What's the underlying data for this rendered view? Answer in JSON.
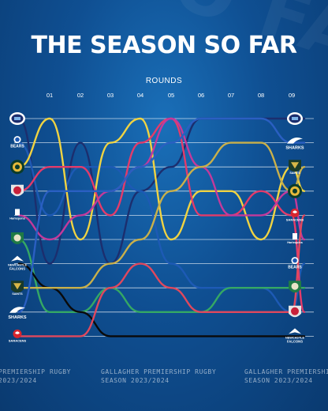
{
  "header": {
    "title": "THE SEASON SO FAR",
    "background_word": "SO FAR"
  },
  "chart_data": {
    "type": "line",
    "title": "THE SEASON SO FAR",
    "xlabel": "ROUNDS",
    "ylabel": "",
    "x_labels": [
      "01",
      "02",
      "03",
      "04",
      "05",
      "06",
      "07",
      "08",
      "09"
    ],
    "y_direction": "table position (1 = top)",
    "ylim": [
      10,
      1
    ],
    "grid": true,
    "start_order": [
      "Bath",
      "Bristol Bears",
      "Exeter Chiefs",
      "Gloucester",
      "Harlequins",
      "Leicester Tigers",
      "Newcastle Falcons",
      "Northampton Saints",
      "Sale Sharks",
      "Saracens"
    ],
    "end_order": [
      "Bath",
      "Sale Sharks",
      "Northampton Saints",
      "Exeter Chiefs",
      "Saracens",
      "Harlequins",
      "Bristol Bears",
      "Leicester Tigers",
      "Gloucester",
      "Newcastle Falcons"
    ],
    "series": [
      {
        "name": "Bath",
        "color": "#1c2e6e",
        "values": [
          1,
          7,
          2,
          7,
          4,
          3,
          1,
          1,
          1,
          1,
          1
        ]
      },
      {
        "name": "Bristol Bears",
        "color": "#1d5ab5",
        "values": [
          2,
          5,
          3,
          3,
          4,
          7,
          8,
          8,
          8,
          9,
          7
        ]
      },
      {
        "name": "Exeter Chiefs",
        "color": "#f0d342",
        "values": [
          3,
          1,
          6,
          2,
          1,
          6,
          4,
          4,
          6,
          3,
          4
        ]
      },
      {
        "name": "Gloucester",
        "color": "#e33b6a",
        "values": [
          4,
          3,
          3,
          5,
          2,
          1,
          5,
          5,
          4,
          5,
          9
        ]
      },
      {
        "name": "Harlequins",
        "color": "#c33a9b",
        "values": [
          5,
          6,
          5,
          4,
          3,
          1,
          3,
          5,
          5,
          4,
          6
        ]
      },
      {
        "name": "Leicester Tigers",
        "color": "#35a864",
        "values": [
          6,
          9,
          9,
          8,
          9,
          9,
          9,
          8,
          8,
          8,
          8
        ]
      },
      {
        "name": "Newcastle Falcons",
        "color": "#0a0a0a",
        "values": [
          7,
          8,
          9,
          10,
          10,
          10,
          10,
          10,
          10,
          10,
          10
        ]
      },
      {
        "name": "Northampton Saints",
        "color": "#c9b04a",
        "values": [
          8,
          8,
          8,
          7,
          6,
          4,
          3,
          2,
          2,
          4,
          3
        ]
      },
      {
        "name": "Sale Sharks",
        "color": "#2a5fc2",
        "values": [
          9,
          4,
          4,
          4,
          3,
          2,
          1,
          1,
          1,
          2,
          2
        ]
      },
      {
        "name": "Saracens",
        "color": "#e0485d",
        "values": [
          10,
          10,
          10,
          8,
          7,
          8,
          9,
          9,
          9,
          9,
          5
        ]
      }
    ]
  },
  "footer": {
    "line1": "GALLAGHER PREMIERSHIP RUGBY",
    "line2": "SEASON 2023/2024",
    "left_line1": "PREMIERSHIP RUGBY",
    "left_line2": "2023/2024",
    "right_line1": "GALLAGHER PREMIERSHIP",
    "right_line2": "SEASON 2023/2024"
  },
  "badges": {
    "bristol": "BEARS",
    "exeter": "CHIEFS",
    "harlequins": "Harlequins",
    "newcastle": "NEWCASTLE FALCONS",
    "northampton": "SAINTS",
    "sale": "SHARKS",
    "saracens": "SARACENS"
  }
}
